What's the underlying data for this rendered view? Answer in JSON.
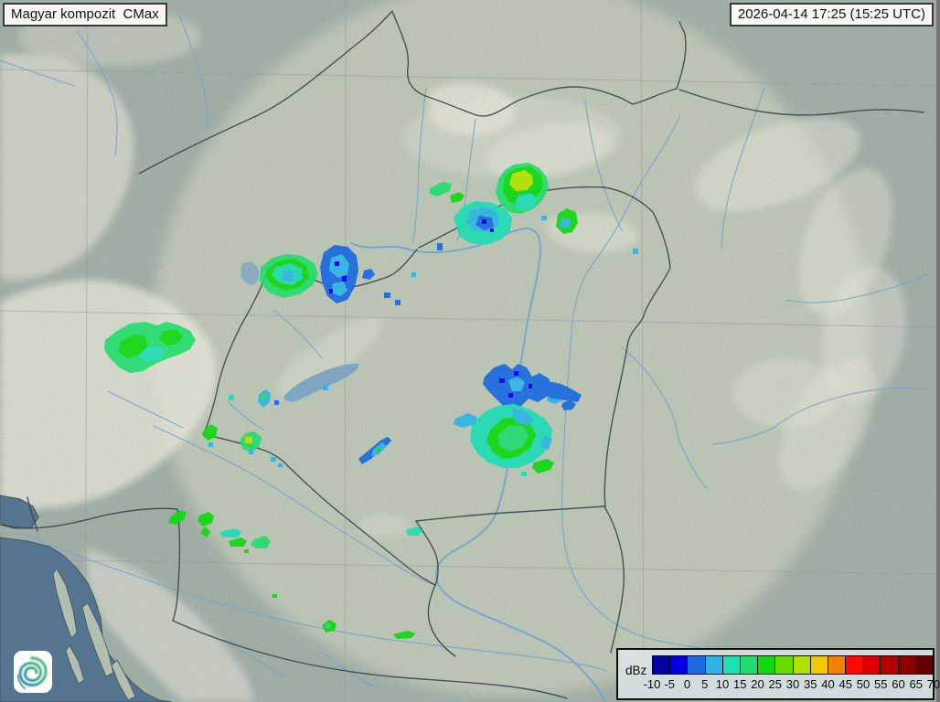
{
  "header": {
    "product_label": "Magyar kompozit  CMax",
    "timestamp": "2026-04-14 17:25 (15:25 UTC)"
  },
  "legend": {
    "unit_label": "dBz",
    "tick_labels": [
      "-10",
      "-5",
      "0",
      "5",
      "10",
      "15",
      "20",
      "25",
      "30",
      "35",
      "40",
      "45",
      "50",
      "55",
      "60",
      "65",
      "70"
    ],
    "colors": [
      "#0000a0",
      "#0000e0",
      "#1a6ae0",
      "#2fb4e6",
      "#1fdcb4",
      "#24dc6e",
      "#10d810",
      "#66dc00",
      "#b4e000",
      "#f0c800",
      "#f08200",
      "#fa0a00",
      "#dc0000",
      "#b40000",
      "#8c0000",
      "#640000"
    ]
  },
  "logo": {
    "name": "hungaromet-spiral-logo",
    "gradient_colors": [
      "#2e7fb2",
      "#3fa98c",
      "#5cbc6a"
    ]
  },
  "map_colors": {
    "land_outer": "#9fada4",
    "land_inner": "#c2cbb9",
    "mountain": "#ece9db",
    "sea": "#54748f",
    "lake": "#7ea6c2",
    "river": "#74a2d2",
    "border": "#3a4648",
    "grid": "#8d9a98"
  },
  "radar_echoes": {
    "summary": "Scattered light precipitation cells, mostly 0-35 dBz",
    "clusters": [
      {
        "area": "north-central mountains",
        "max_dbz": 35
      },
      {
        "area": "northwest near Danube",
        "max_dbz": 20
      },
      {
        "area": "west (Alps)",
        "max_dbz": 30
      },
      {
        "area": "south-central",
        "max_dbz": 25
      },
      {
        "area": "southwest dashes",
        "max_dbz": 30
      }
    ]
  }
}
